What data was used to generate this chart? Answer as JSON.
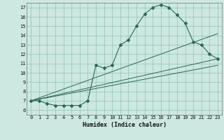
{
  "title": "",
  "xlabel": "Humidex (Indice chaleur)",
  "ylabel": "",
  "bg_color": "#cce8e0",
  "grid_color": "#90c0b8",
  "line_color": "#2a6858",
  "xlim": [
    -0.5,
    23.5
  ],
  "ylim": [
    5.5,
    17.5
  ],
  "xticks": [
    0,
    1,
    2,
    3,
    4,
    5,
    6,
    7,
    8,
    9,
    10,
    11,
    12,
    13,
    14,
    15,
    16,
    17,
    18,
    19,
    20,
    21,
    22,
    23
  ],
  "yticks": [
    6,
    7,
    8,
    9,
    10,
    11,
    12,
    13,
    14,
    15,
    16,
    17
  ],
  "main_curve_x": [
    0,
    1,
    2,
    3,
    4,
    5,
    6,
    7,
    8,
    9,
    10,
    11,
    12,
    13,
    14,
    15,
    16,
    17,
    18,
    19,
    20,
    21,
    22,
    23
  ],
  "main_curve_y": [
    7.0,
    7.0,
    6.7,
    6.5,
    6.5,
    6.5,
    6.5,
    7.0,
    10.8,
    10.5,
    10.8,
    13.0,
    13.5,
    15.0,
    16.3,
    17.0,
    17.3,
    17.0,
    16.2,
    15.3,
    13.3,
    13.0,
    12.0,
    11.5
  ],
  "line1_x": [
    0,
    23
  ],
  "line1_y": [
    7.0,
    10.8
  ],
  "line2_x": [
    0,
    23
  ],
  "line2_y": [
    7.0,
    14.2
  ],
  "line3_x": [
    0,
    23
  ],
  "line3_y": [
    7.0,
    11.5
  ]
}
